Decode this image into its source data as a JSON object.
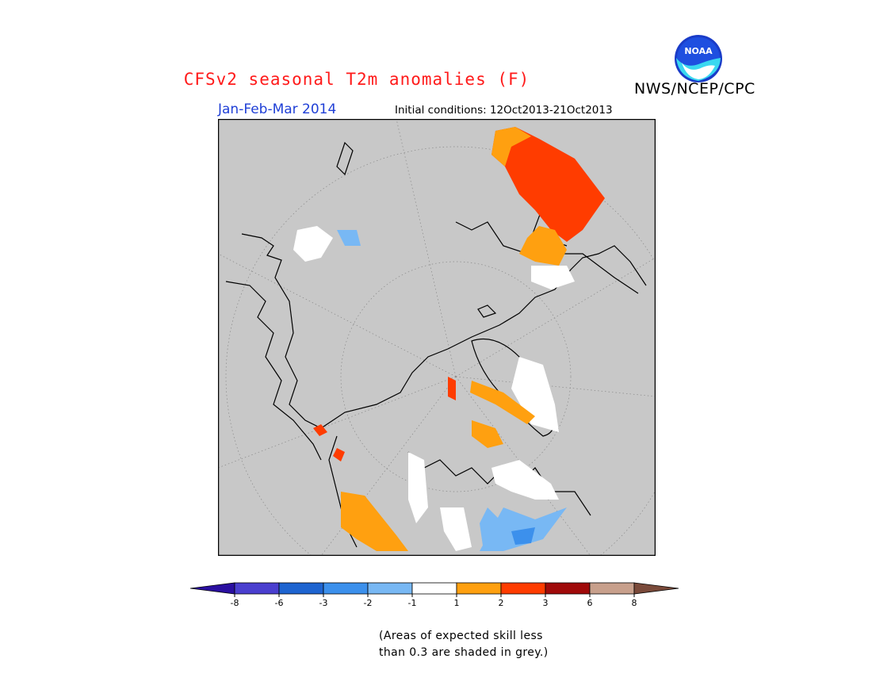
{
  "title": "CFSv2 seasonal T2m anomalies (F)",
  "agency": "NWS/NCEP/CPC",
  "period": "Jan-Feb-Mar 2014",
  "initial_conditions": "Initial conditions: 12Oct2013-21Oct2013",
  "logo_text": "NOAA",
  "note_line1": "(Areas of expected skill less",
  "note_line2": "than 0.3 are shaded in grey.)",
  "colors": {
    "title": "#ff1a1a",
    "period": "#1f3fd6",
    "mask_grey": "#c8c8c8"
  },
  "legend": {
    "labels": [
      "-8",
      "-6",
      "-3",
      "-2",
      "-1",
      "1",
      "2",
      "3",
      "6",
      "8"
    ],
    "bins": [
      {
        "color": "#2a0fa0"
      },
      {
        "color": "#4a3fcf"
      },
      {
        "color": "#1e64d0"
      },
      {
        "color": "#3c90ec"
      },
      {
        "color": "#78b8f4"
      },
      {
        "color": "#ffffff"
      },
      {
        "color": "#ffa010"
      },
      {
        "color": "#ff3c00"
      },
      {
        "color": "#a00a0a"
      },
      {
        "color": "#c8a08c"
      },
      {
        "color": "#7a4a3a"
      }
    ]
  }
}
